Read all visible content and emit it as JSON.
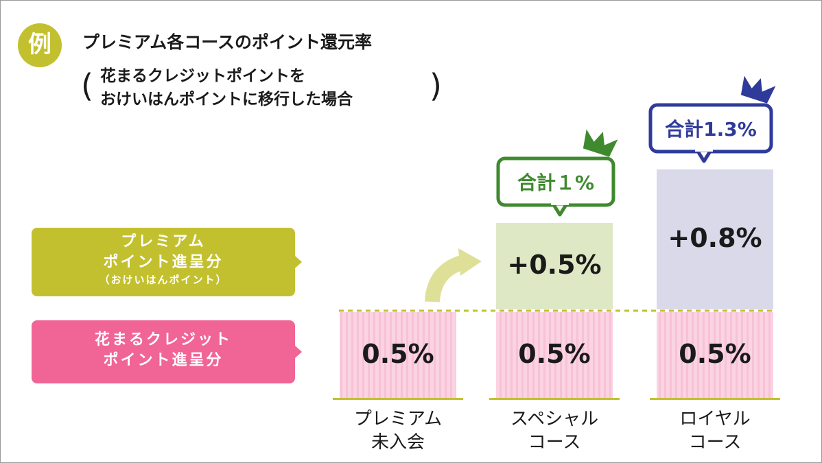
{
  "header": {
    "badge": "例",
    "title": "プレミアム各コースのポイント還元率",
    "subtitle_line1": "花まるクレジットポイントを",
    "subtitle_line2": "おけいはんポイントに移行した場合",
    "paren_open": "(",
    "paren_close": ")"
  },
  "legend": {
    "premium_line1": "プレミアム",
    "premium_line2": "ポイント進呈分",
    "premium_line3": "（おけいはんポイント）",
    "credit_line1": "花まるクレジット",
    "credit_line2": "ポイント進呈分"
  },
  "chart_data": {
    "type": "bar",
    "stacked": true,
    "unit": "%",
    "categories": [
      "プレミアム未入会",
      "スペシャルコース",
      "ロイヤルコース"
    ],
    "category_lines": [
      [
        "プレミアム",
        "未入会"
      ],
      [
        "スペシャル",
        "コース"
      ],
      [
        "ロイヤル",
        "コース"
      ]
    ],
    "series": [
      {
        "name": "花まるクレジットポイント進呈分",
        "values": [
          0.5,
          0.5,
          0.5
        ],
        "labels": [
          "0.5%",
          "0.5%",
          "0.5%"
        ],
        "color": "#fbd3e3"
      },
      {
        "name": "プレミアムポイント進呈分（おけいはんポイント）",
        "values": [
          0,
          0.5,
          0.8
        ],
        "labels": [
          "",
          "+0.5%",
          "+0.8%"
        ],
        "colors": [
          "#dfe8c4",
          "#dfe8c4",
          "#d9d9ea"
        ]
      }
    ],
    "totals": [
      null,
      "合計１%",
      "合計1.3%"
    ],
    "total_colors": [
      null,
      "#3f8a2f",
      "#2f3b9a"
    ],
    "baseline_color": "#c3c02f",
    "divider_color": "#c3c02f"
  }
}
